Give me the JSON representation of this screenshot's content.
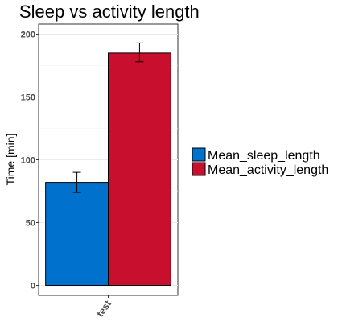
{
  "chart_data": {
    "type": "bar",
    "title": "Sleep vs activity length",
    "xlabel": "",
    "ylabel": "Time [min]",
    "categories": [
      "test"
    ],
    "ylim": [
      -8,
      208
    ],
    "yticks": [
      0,
      50,
      100,
      150,
      200
    ],
    "grid": true,
    "legend_position": "right",
    "series": [
      {
        "name": "Mean_sleep_length",
        "values": [
          82
        ],
        "error_low": [
          74
        ],
        "error_high": [
          90
        ],
        "color": "#0072ce"
      },
      {
        "name": "Mean_activity_length",
        "values": [
          185
        ],
        "error_low": [
          178
        ],
        "error_high": [
          193
        ],
        "color": "#c8102e"
      }
    ]
  }
}
